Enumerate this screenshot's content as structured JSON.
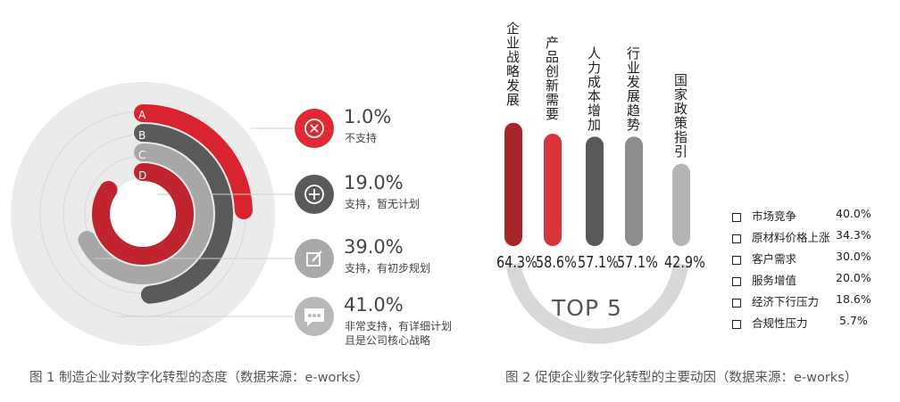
{
  "chart_data": [
    {
      "type": "radial-bar",
      "caption": "图 1 制造企业对数字化转型的态度（数据来源：e-works）",
      "series": [
        {
          "letter": "A",
          "value": 1.0,
          "value_label": "1.0%",
          "desc": "不支持",
          "color": "#d9232f",
          "icon": "x-circle-icon"
        },
        {
          "letter": "B",
          "value": 19.0,
          "value_label": "19.0%",
          "desc": "支持，暂无计划",
          "color": "#5a5a5a",
          "icon": "plus-circle-icon"
        },
        {
          "letter": "C",
          "value": 39.0,
          "value_label": "39.0%",
          "desc": "支持，有初步规划",
          "color": "#a7a7a7",
          "icon": "edit-icon"
        },
        {
          "letter": "D",
          "value": 41.0,
          "value_label": "41.0%",
          "desc": "非常支持，有详细计划且是公司核心战略",
          "color": "#c0242f",
          "icon": "chat-icon"
        }
      ]
    },
    {
      "type": "bar",
      "caption": "图 2 促使企业数字化转型的主要动因（数据来源：e-works）",
      "center_label": "TOP 5",
      "categories": [
        "企业战略发展",
        "产品创新需要",
        "人力成本增加",
        "行业发展趋势",
        "国家政策指引"
      ],
      "values": [
        64.3,
        58.6,
        57.1,
        57.1,
        42.9
      ],
      "value_labels": [
        "64.3%",
        "58.6%",
        "57.1%",
        "57.1%",
        "42.9%"
      ],
      "colors": [
        "#a8252c",
        "#d8353a",
        "#595959",
        "#8d8d8d",
        "#b4b4b4"
      ],
      "others": [
        {
          "name": "市场竞争",
          "value": 40.0,
          "label": "40.0%"
        },
        {
          "name": "原材料价格上涨",
          "value": 34.3,
          "label": "34.3%"
        },
        {
          "name": "客户需求",
          "value": 30.0,
          "label": "30.0%"
        },
        {
          "name": "服务增值",
          "value": 20.0,
          "label": "20.0%"
        },
        {
          "name": "经济下行压力",
          "value": 18.6,
          "label": "18.6%"
        },
        {
          "name": "合规性压力",
          "value": 5.7,
          "label": "5.7%"
        }
      ]
    }
  ]
}
